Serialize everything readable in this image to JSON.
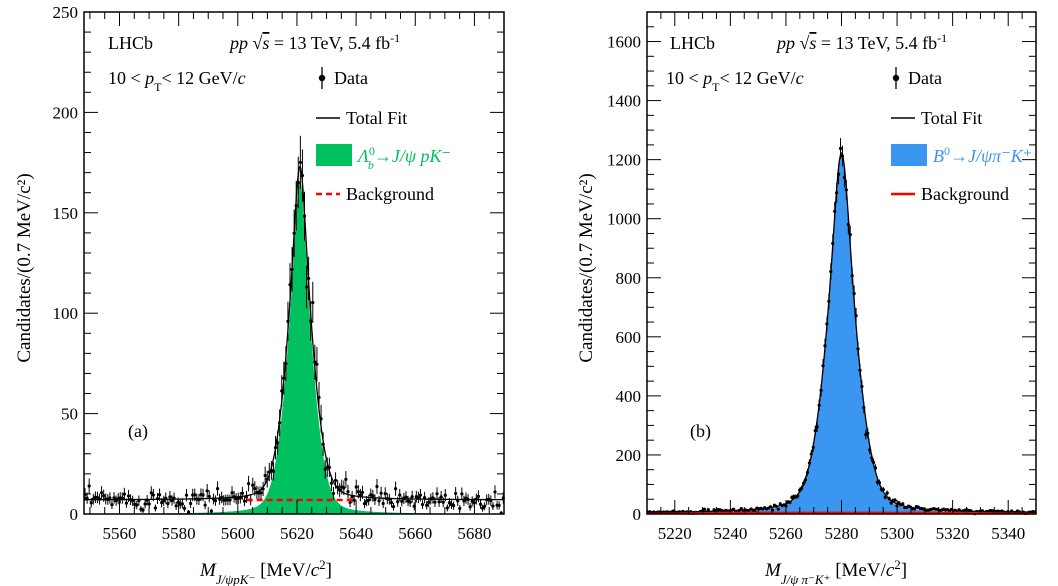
{
  "chart_data": [
    {
      "type": "histogram-fit",
      "panel_label": "(a)",
      "experiment": "LHCb",
      "condition_text": {
        "prefix": "pp",
        "sqrt": "s",
        "rest": " = 13 TeV, 5.4 fb",
        "sup": "-1"
      },
      "pt_range_text": {
        "left": "10 < ",
        "p": "p",
        "sub": "T",
        "right": "< 12 GeV/",
        "c": "c"
      },
      "xlabel": {
        "M": "M",
        "sub": "J/ψpK⁻",
        "unit": " [MeV/",
        "c": "c",
        "sup": "2",
        "close": "]"
      },
      "ylabel": "Candidates/(0.7 MeV/c²)",
      "xlim": [
        5548,
        5690
      ],
      "ylim": [
        0,
        250
      ],
      "xticks": [
        5560,
        5580,
        5600,
        5620,
        5640,
        5660,
        5680
      ],
      "yticks": [
        0,
        50,
        100,
        150,
        200,
        250
      ],
      "x_minor_step": 5,
      "y_minor_step": 10,
      "legend": {
        "data": "Data",
        "total_fit": "Total Fit",
        "signal": {
          "head": "Λ",
          "sub": "b",
          "sup": "0",
          "tail": "→J/ψ pK⁻"
        },
        "background": "Background"
      },
      "colors": {
        "signal": "#00c060",
        "background": "#ff0000",
        "signal_text": "#00c060"
      },
      "background_style": "dashed",
      "model": {
        "background": 7,
        "signal_peak": 166,
        "mean": 5621.0,
        "sigma": 4.6,
        "gamma": 2.9,
        "mix": 0.5,
        "bin_width": 0.7
      },
      "data_error_kind": "poisson"
    },
    {
      "type": "histogram-fit",
      "panel_label": "(b)",
      "experiment": "LHCb",
      "condition_text": {
        "prefix": "pp",
        "sqrt": "s",
        "rest": " = 13 TeV, 5.4 fb",
        "sup": "-1"
      },
      "pt_range_text": {
        "left": "10 < ",
        "p": "p",
        "sub": "T",
        "right": "< 12 GeV/",
        "c": "c"
      },
      "xlabel": {
        "M": "M",
        "sub": "J/ψ π⁻K⁺",
        "unit": " [MeV/",
        "c": "c",
        "sup": "2",
        "close": "]"
      },
      "ylabel": "Candidates/(0.7 MeV/c²)",
      "xlim": [
        5210,
        5350
      ],
      "ylim": [
        0,
        1700
      ],
      "xticks": [
        5220,
        5240,
        5260,
        5280,
        5300,
        5320,
        5340
      ],
      "yticks": [
        0,
        200,
        400,
        600,
        800,
        1000,
        1200,
        1400,
        1600
      ],
      "x_minor_step": 5,
      "y_minor_step": 50,
      "legend": {
        "data": "Data",
        "total_fit": "Total Fit",
        "signal": {
          "head": "B",
          "sub": "",
          "sup": "0",
          "tail": "→J/ψπ⁻K⁺"
        },
        "background": "Background"
      },
      "colors": {
        "signal": "#3a96f0",
        "background": "#ff0000",
        "signal_text": "#3a96f0"
      },
      "background_style": "solid",
      "model": {
        "background": 4,
        "signal_peak": 1218,
        "mean": 5280.0,
        "sigma": 6.0,
        "gamma": 4.2,
        "mix": 0.45,
        "bin_width": 0.7
      },
      "data_error_kind": "poisson"
    }
  ]
}
